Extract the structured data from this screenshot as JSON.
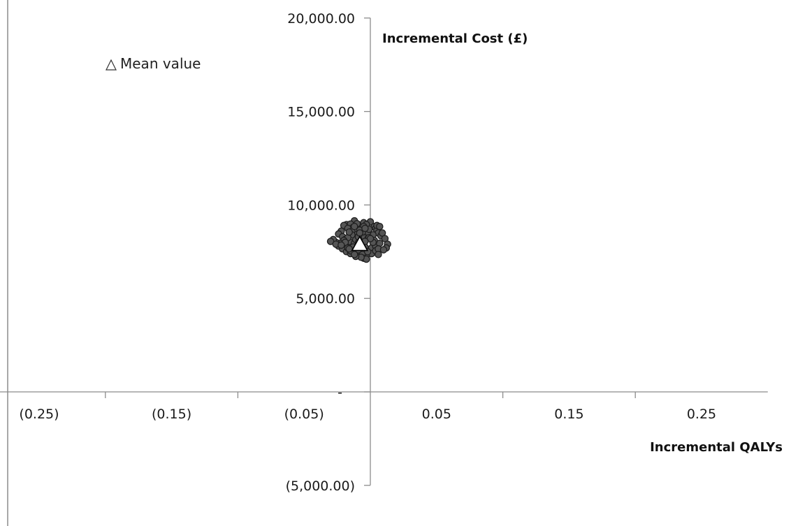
{
  "chart_data": {
    "type": "scatter",
    "xlabel": "Incremental QALYs",
    "ylabel": "Incremental Cost (£)",
    "xlim": [
      -0.3,
      0.3
    ],
    "ylim": [
      -5000,
      20000
    ],
    "x_ticks": [
      {
        "value": -0.25,
        "label": "(0.25)"
      },
      {
        "value": -0.15,
        "label": "(0.15)"
      },
      {
        "value": -0.05,
        "label": "(0.05)"
      },
      {
        "value": 0.05,
        "label": "0.05"
      },
      {
        "value": 0.15,
        "label": "0.15"
      },
      {
        "value": 0.25,
        "label": "0.25"
      }
    ],
    "y_ticks": [
      {
        "value": 20000,
        "label": "20,000.00"
      },
      {
        "value": 15000,
        "label": "15,000.00"
      },
      {
        "value": 10000,
        "label": "10,000.00"
      },
      {
        "value": 5000,
        "label": "5,000.00"
      },
      {
        "value": 0,
        "label": "-"
      },
      {
        "value": -5000,
        "label": "(5,000.00)"
      }
    ],
    "grid": false,
    "legend": {
      "label": "Mean value",
      "placement": "top-left",
      "marker": "triangle"
    },
    "mean_point": {
      "x": -0.008,
      "y": 7900
    },
    "colors": {
      "points": "#555555",
      "point_edge": "#1e1e1e",
      "axis": "#8c8c8c",
      "mean_fill": "#ffffff",
      "mean_edge": "#000000"
    },
    "series": [
      {
        "x": [
          -0.012,
          -0.005,
          0.0,
          -0.018,
          -0.02,
          -0.015,
          -0.01,
          -0.003,
          0.003,
          0.004,
          0.005,
          0.006,
          0.008,
          0.002,
          -0.002,
          -0.007,
          -0.013,
          -0.017,
          -0.022,
          -0.024,
          -0.021,
          -0.019,
          -0.016,
          -0.012,
          -0.008,
          -0.004,
          0.001,
          0.004,
          0.007,
          0.003,
          -0.001,
          -0.006,
          -0.01,
          -0.014,
          -0.011,
          -0.009,
          -0.006,
          -0.014,
          -0.017,
          -0.02,
          -0.023,
          -0.026,
          -0.024,
          -0.021,
          -0.018,
          -0.015,
          -0.011,
          -0.007,
          -0.003,
          0.001,
          0.004,
          0.006,
          0.002,
          -0.001,
          -0.005,
          -0.009,
          -0.013,
          -0.01,
          -0.006,
          -0.002,
          0.0,
          -0.004,
          -0.008,
          -0.012,
          -0.016,
          -0.019,
          -0.017,
          -0.013,
          -0.009,
          -0.005,
          -0.003,
          -0.007,
          -0.011,
          -0.015,
          -0.028,
          -0.03,
          -0.026,
          -0.022,
          0.005,
          0.007,
          0.009,
          0.011,
          0.013,
          0.012,
          0.01,
          0.006,
          -0.004,
          -0.008,
          -0.012,
          -0.016
        ],
        "y": [
          9150,
          9050,
          9100,
          8950,
          8900,
          8980,
          9000,
          8950,
          8850,
          8750,
          8650,
          8500,
          8350,
          8400,
          8550,
          8700,
          8800,
          8750,
          8600,
          8450,
          8300,
          8150,
          8050,
          7950,
          7850,
          7750,
          7700,
          7800,
          7950,
          8100,
          8250,
          8350,
          8450,
          8600,
          8150,
          7980,
          8550,
          8400,
          8250,
          8100,
          7950,
          8000,
          7800,
          7650,
          7500,
          7400,
          7300,
          7250,
          7300,
          7400,
          7550,
          7650,
          8000,
          8700,
          8850,
          8300,
          7600,
          7450,
          7350,
          7500,
          8200,
          8050,
          8650,
          8850,
          8550,
          8000,
          7700,
          7750,
          7600,
          7150,
          7100,
          7200,
          7250,
          7550,
          8150,
          8050,
          7900,
          7850,
          8900,
          8850,
          8500,
          8200,
          7900,
          7700,
          7600,
          7350,
          8750,
          8500,
          7350,
          7650
        ]
      }
    ]
  }
}
